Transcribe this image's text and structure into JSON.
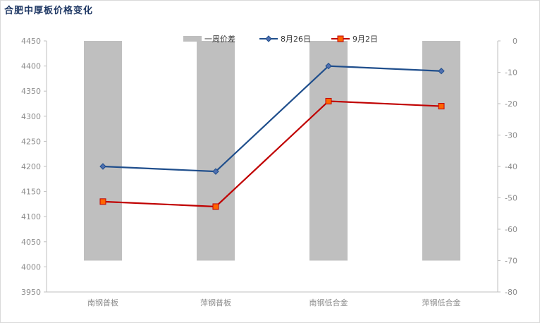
{
  "chart_data": {
    "type": "bar+line",
    "title": "合肥中厚板价格变化",
    "categories": [
      "南钢普板",
      "萍钢普板",
      "南钢低合金",
      "萍钢低合金"
    ],
    "left_axis": {
      "ylim": [
        3950,
        4450
      ],
      "ticks": [
        3950,
        4000,
        4050,
        4100,
        4150,
        4200,
        4250,
        4300,
        4350,
        4400,
        4450
      ]
    },
    "right_axis": {
      "ylim": [
        -80,
        0
      ],
      "ticks": [
        0,
        -10,
        -20,
        -30,
        -40,
        -50,
        -60,
        -70,
        -80
      ]
    },
    "series": [
      {
        "name": "一周价差",
        "type": "bar",
        "axis": "right",
        "color": "#bfbfbf",
        "values": [
          -70,
          -70,
          -70,
          -70
        ]
      },
      {
        "name": "8月26日",
        "type": "line",
        "axis": "left",
        "color": "#1f4e8c",
        "marker": "diamond",
        "marker_color": "#4f6fb0",
        "values": [
          4200,
          4190,
          4400,
          4390
        ]
      },
      {
        "name": "9月2日",
        "type": "line",
        "axis": "left",
        "color": "#c00000",
        "marker": "square",
        "marker_color": "#ff6600",
        "values": [
          4130,
          4120,
          4330,
          4320
        ]
      }
    ],
    "legend": "top-center",
    "grid": false
  }
}
